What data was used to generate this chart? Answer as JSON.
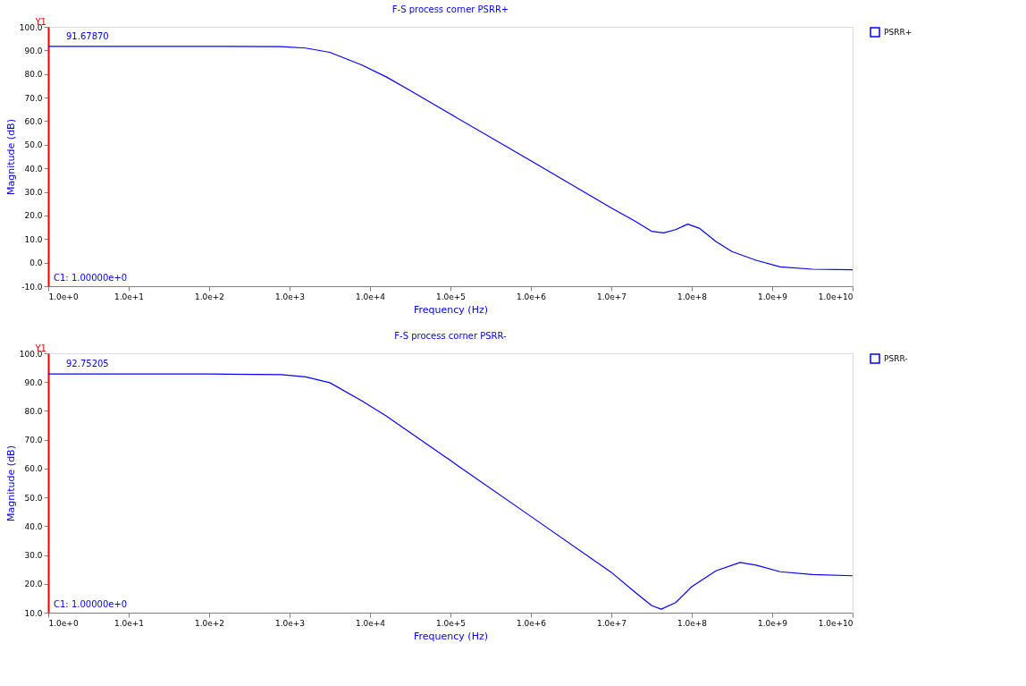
{
  "chart_data": [
    {
      "type": "line",
      "title": "F-S process corner PSRR+",
      "xlabel": "Frequency (Hz)",
      "ylabel": "Magnitude (dB)",
      "log": "x",
      "grid": false,
      "legend": "top right",
      "marker": "none",
      "line_style": "solid",
      "x": [
        1,
        100,
        794,
        1585,
        3162,
        7943,
        15849,
        31623,
        100000,
        1000000,
        10000000,
        19953000,
        31623000,
        44668000,
        63096000,
        89125000,
        125893000,
        199526000,
        316228000,
        630957000,
        1258925000,
        3162278000,
        10000000000
      ],
      "series": [
        {
          "name": "PSRR+",
          "color": "#0000ff",
          "values": [
            91.7,
            91.7,
            91.6,
            91.0,
            89.2,
            83.8,
            78.8,
            73.0,
            63.0,
            43.2,
            23.2,
            17.5,
            13.3,
            12.6,
            14.0,
            16.3,
            14.5,
            9.0,
            4.7,
            1.0,
            -1.8,
            -2.8,
            -3.0
          ]
        }
      ],
      "xlim": [
        1,
        10000000000
      ],
      "ylim": [
        -10,
        100
      ],
      "xticks": [
        {
          "value": 1,
          "label": "1.0e+0"
        },
        {
          "value": 10,
          "label": "1.0e+1"
        },
        {
          "value": 100,
          "label": "1.0e+2"
        },
        {
          "value": 1000,
          "label": "1.0e+3"
        },
        {
          "value": 10000,
          "label": "1.0e+4"
        },
        {
          "value": 100000,
          "label": "1.0e+5"
        },
        {
          "value": 1000000,
          "label": "1.0e+6"
        },
        {
          "value": 10000000,
          "label": "1.0e+7"
        },
        {
          "value": 100000000,
          "label": "1.0e+8"
        },
        {
          "value": 1000000000,
          "label": "1.0e+9"
        },
        {
          "value": 10000000000,
          "label": "1.0e+10"
        }
      ],
      "yticks": [
        {
          "value": -10,
          "label": "-10.0"
        },
        {
          "value": 0,
          "label": "0.0"
        },
        {
          "value": 10,
          "label": "10.0"
        },
        {
          "value": 20,
          "label": "20.0"
        },
        {
          "value": 30,
          "label": "30.0"
        },
        {
          "value": 40,
          "label": "40.0"
        },
        {
          "value": 50,
          "label": "50.0"
        },
        {
          "value": 60,
          "label": "60.0"
        },
        {
          "value": 70,
          "label": "70.0"
        },
        {
          "value": 80,
          "label": "80.0"
        },
        {
          "value": 90,
          "label": "90.0"
        },
        {
          "value": 100,
          "label": "100.0"
        }
      ],
      "annotations": [
        "Y1",
        "C1: 1.00000e+0",
        {
          "text": "91.67870",
          "x": 1,
          "y": 91.6787
        }
      ]
    },
    {
      "type": "line",
      "title": "F-S process corner PSRR-",
      "xlabel": "Frequency (Hz)",
      "ylabel": "Magnitude (dB)",
      "log": "x",
      "grid": false,
      "legend": "top right",
      "marker": "none",
      "line_style": "solid",
      "x": [
        1,
        100,
        794,
        1585,
        3162,
        7943,
        15849,
        100000,
        1000000,
        10000000,
        19953000,
        31623000,
        41687000,
        63096000,
        100000000,
        199526000,
        398107000,
        630957000,
        1258925000,
        3162278000,
        10000000000
      ],
      "series": [
        {
          "name": "PSRR-",
          "color": "#0000ff",
          "values": [
            92.8,
            92.8,
            92.6,
            91.8,
            89.8,
            83.5,
            78.3,
            62.8,
            43.4,
            24.0,
            17.0,
            12.5,
            11.2,
            13.5,
            19.0,
            24.5,
            27.4,
            26.5,
            24.2,
            23.2,
            22.8
          ]
        }
      ],
      "xlim": [
        1,
        10000000000
      ],
      "ylim": [
        10,
        100
      ],
      "xticks": [
        {
          "value": 1,
          "label": "1.0e+0"
        },
        {
          "value": 10,
          "label": "1.0e+1"
        },
        {
          "value": 100,
          "label": "1.0e+2"
        },
        {
          "value": 1000,
          "label": "1.0e+3"
        },
        {
          "value": 10000,
          "label": "1.0e+4"
        },
        {
          "value": 100000,
          "label": "1.0e+5"
        },
        {
          "value": 1000000,
          "label": "1.0e+6"
        },
        {
          "value": 10000000,
          "label": "1.0e+7"
        },
        {
          "value": 100000000,
          "label": "1.0e+8"
        },
        {
          "value": 1000000000,
          "label": "1.0e+9"
        },
        {
          "value": 10000000000,
          "label": "1.0e+10"
        }
      ],
      "yticks": [
        {
          "value": 10,
          "label": "10.0"
        },
        {
          "value": 20,
          "label": "20.0"
        },
        {
          "value": 30,
          "label": "30.0"
        },
        {
          "value": 40,
          "label": "40.0"
        },
        {
          "value": 50,
          "label": "50.0"
        },
        {
          "value": 60,
          "label": "60.0"
        },
        {
          "value": 70,
          "label": "70.0"
        },
        {
          "value": 80,
          "label": "80.0"
        },
        {
          "value": 90,
          "label": "90.0"
        },
        {
          "value": 100,
          "label": "100.0"
        }
      ],
      "annotations": [
        "Y1",
        "C1: 1.00000e+0",
        {
          "text": "92.75205",
          "x": 1,
          "y": 92.75205
        }
      ]
    }
  ]
}
